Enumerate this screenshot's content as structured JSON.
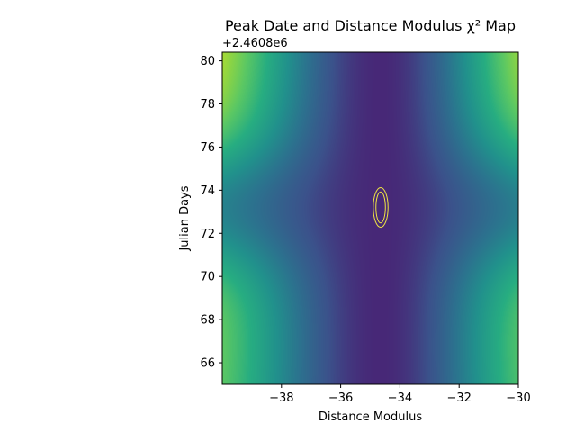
{
  "chart_data": {
    "type": "heatmap",
    "title": "Peak Date and Distance Modulus χ² Map",
    "xlabel": "Distance Modulus",
    "ylabel": "Julian Days",
    "y_offset_label": "+2.4608e6",
    "xlim": [
      -40,
      -30
    ],
    "ylim": [
      65,
      80.4
    ],
    "x_ticks": [
      -38,
      -36,
      -34,
      -32,
      -30
    ],
    "x_tick_labels": [
      "−38",
      "−36",
      "−34",
      "−32",
      "−30"
    ],
    "y_ticks": [
      66,
      68,
      70,
      72,
      74,
      76,
      78,
      80
    ],
    "y_tick_labels": [
      "66",
      "68",
      "70",
      "72",
      "74",
      "76",
      "78",
      "80"
    ],
    "colormap": "viridis",
    "minimum": {
      "x": -34.65,
      "y": 73.2
    },
    "contours": [
      {
        "level": "inner",
        "x_halfwidth": 0.16,
        "y_halfwidth": 0.72,
        "color": "#f0e442"
      },
      {
        "level": "outer",
        "x_halfwidth": 0.25,
        "y_halfwidth": 0.92,
        "color": "#f0e442"
      }
    ]
  }
}
